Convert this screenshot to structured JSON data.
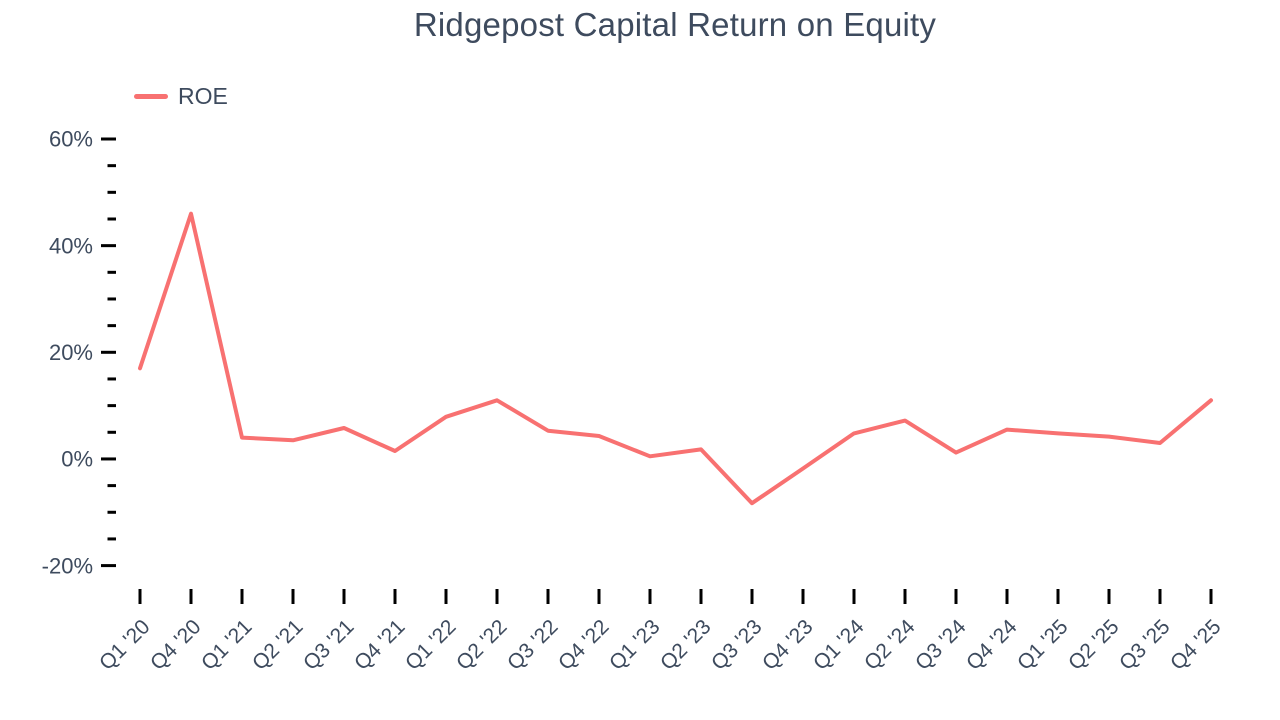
{
  "chart_data": {
    "type": "line",
    "title": "Ridgepost Capital Return on Equity",
    "categories": [
      "Q1 '20",
      "Q4 '20",
      "Q1 '21",
      "Q2 '21",
      "Q3 '21",
      "Q4 '21",
      "Q1 '22",
      "Q2 '22",
      "Q3 '22",
      "Q4 '22",
      "Q1 '23",
      "Q2 '23",
      "Q3 '23",
      "Q4 '23",
      "Q1 '24",
      "Q2 '24",
      "Q3 '24",
      "Q4 '24",
      "Q1 '25",
      "Q2 '25",
      "Q3 '25",
      "Q4 '25"
    ],
    "series": [
      {
        "name": "ROE",
        "color": "#f87171",
        "values": [
          17,
          46,
          4,
          3.5,
          5.8,
          1.5,
          7.9,
          11,
          5.3,
          4.3,
          0.5,
          1.8,
          -8.3,
          -1.8,
          4.8,
          7.2,
          1.2,
          5.5,
          4.8,
          4.2,
          3,
          11
        ]
      }
    ],
    "unit": "%",
    "xlabel": "",
    "ylabel": "",
    "y_axis": {
      "min": -20,
      "max": 60,
      "major_step": 20,
      "minor_step": 5,
      "label_values": [
        60,
        40,
        20,
        0,
        -20
      ],
      "labels": [
        "60%",
        "40%",
        "20%",
        "0%",
        "-20%"
      ]
    },
    "legend_position": "top-left",
    "grid": false,
    "colors": {
      "text": "#3e4b5e",
      "tick": "#000000",
      "background": "#ffffff"
    }
  }
}
